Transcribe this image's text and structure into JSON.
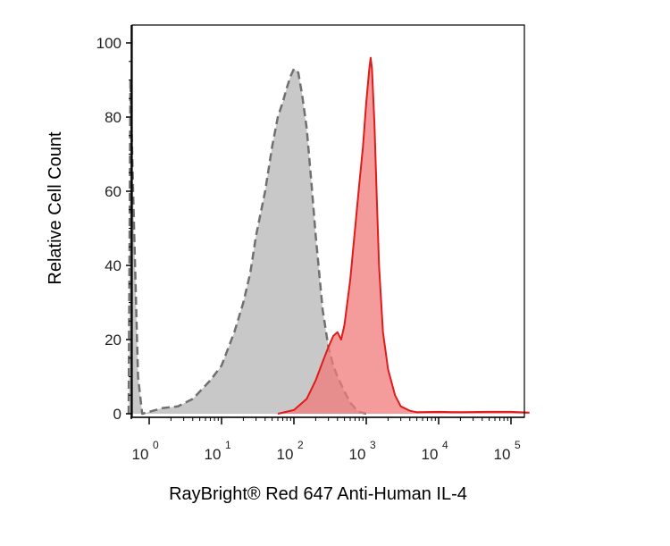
{
  "chart_data": {
    "type": "area",
    "xlabel": "RayBright® Red 647 Anti-Human IL-4",
    "ylabel": "Relative Cell Count",
    "x_scale": "log",
    "xlim": [
      0.5,
      200000
    ],
    "ylim": [
      0,
      100
    ],
    "grid": false,
    "y_ticks": [
      "0",
      "20",
      "40",
      "60",
      "80",
      "100"
    ],
    "x_ticks": [
      {
        "base": "10",
        "exp": "0",
        "value": 1
      },
      {
        "base": "10",
        "exp": "1",
        "value": 10
      },
      {
        "base": "10",
        "exp": "2",
        "value": 100
      },
      {
        "base": "10",
        "exp": "3",
        "value": 1000
      },
      {
        "base": "10",
        "exp": "4",
        "value": 10000
      },
      {
        "base": "10",
        "exp": "5",
        "value": 100000
      }
    ],
    "series": [
      {
        "role": "control",
        "fill": "#c8c8c8",
        "stroke": "#707070",
        "dashed": true,
        "points": [
          [
            0.52,
            0
          ],
          [
            0.55,
            90
          ],
          [
            0.6,
            60
          ],
          [
            0.7,
            10
          ],
          [
            0.8,
            0
          ],
          [
            1.0,
            0.5
          ],
          [
            1.5,
            1.5
          ],
          [
            2.5,
            2
          ],
          [
            4,
            4
          ],
          [
            7,
            9
          ],
          [
            10,
            13
          ],
          [
            15,
            22
          ],
          [
            20,
            30
          ],
          [
            25,
            38
          ],
          [
            30,
            48
          ],
          [
            40,
            60
          ],
          [
            50,
            72
          ],
          [
            60,
            80
          ],
          [
            70,
            84
          ],
          [
            80,
            88
          ],
          [
            90,
            91
          ],
          [
            100,
            93
          ],
          [
            115,
            92
          ],
          [
            130,
            86
          ],
          [
            150,
            77
          ],
          [
            175,
            62
          ],
          [
            200,
            48
          ],
          [
            250,
            28
          ],
          [
            300,
            18
          ],
          [
            350,
            13
          ],
          [
            400,
            10
          ],
          [
            500,
            6
          ],
          [
            600,
            3
          ],
          [
            700,
            1.5
          ],
          [
            800,
            0.5
          ],
          [
            1000,
            0
          ]
        ]
      },
      {
        "role": "stained",
        "fill": "#f07a7a",
        "stroke": "#e01b1b",
        "dashed": false,
        "points": [
          [
            60,
            0
          ],
          [
            100,
            1
          ],
          [
            150,
            4
          ],
          [
            200,
            9
          ],
          [
            250,
            14
          ],
          [
            300,
            18
          ],
          [
            350,
            21
          ],
          [
            400,
            22
          ],
          [
            450,
            20
          ],
          [
            500,
            24
          ],
          [
            600,
            36
          ],
          [
            700,
            50
          ],
          [
            800,
            62
          ],
          [
            900,
            72
          ],
          [
            1000,
            84
          ],
          [
            1100,
            93
          ],
          [
            1150,
            96
          ],
          [
            1200,
            93
          ],
          [
            1300,
            78
          ],
          [
            1400,
            58
          ],
          [
            1500,
            40
          ],
          [
            1700,
            22
          ],
          [
            2000,
            12
          ],
          [
            2500,
            5
          ],
          [
            3000,
            2
          ],
          [
            4000,
            0.8
          ],
          [
            5000,
            0.4
          ],
          [
            10000,
            0.5
          ],
          [
            20000,
            0.4
          ],
          [
            50000,
            0.5
          ],
          [
            100000,
            0.5
          ],
          [
            180000,
            0.3
          ]
        ]
      }
    ]
  }
}
